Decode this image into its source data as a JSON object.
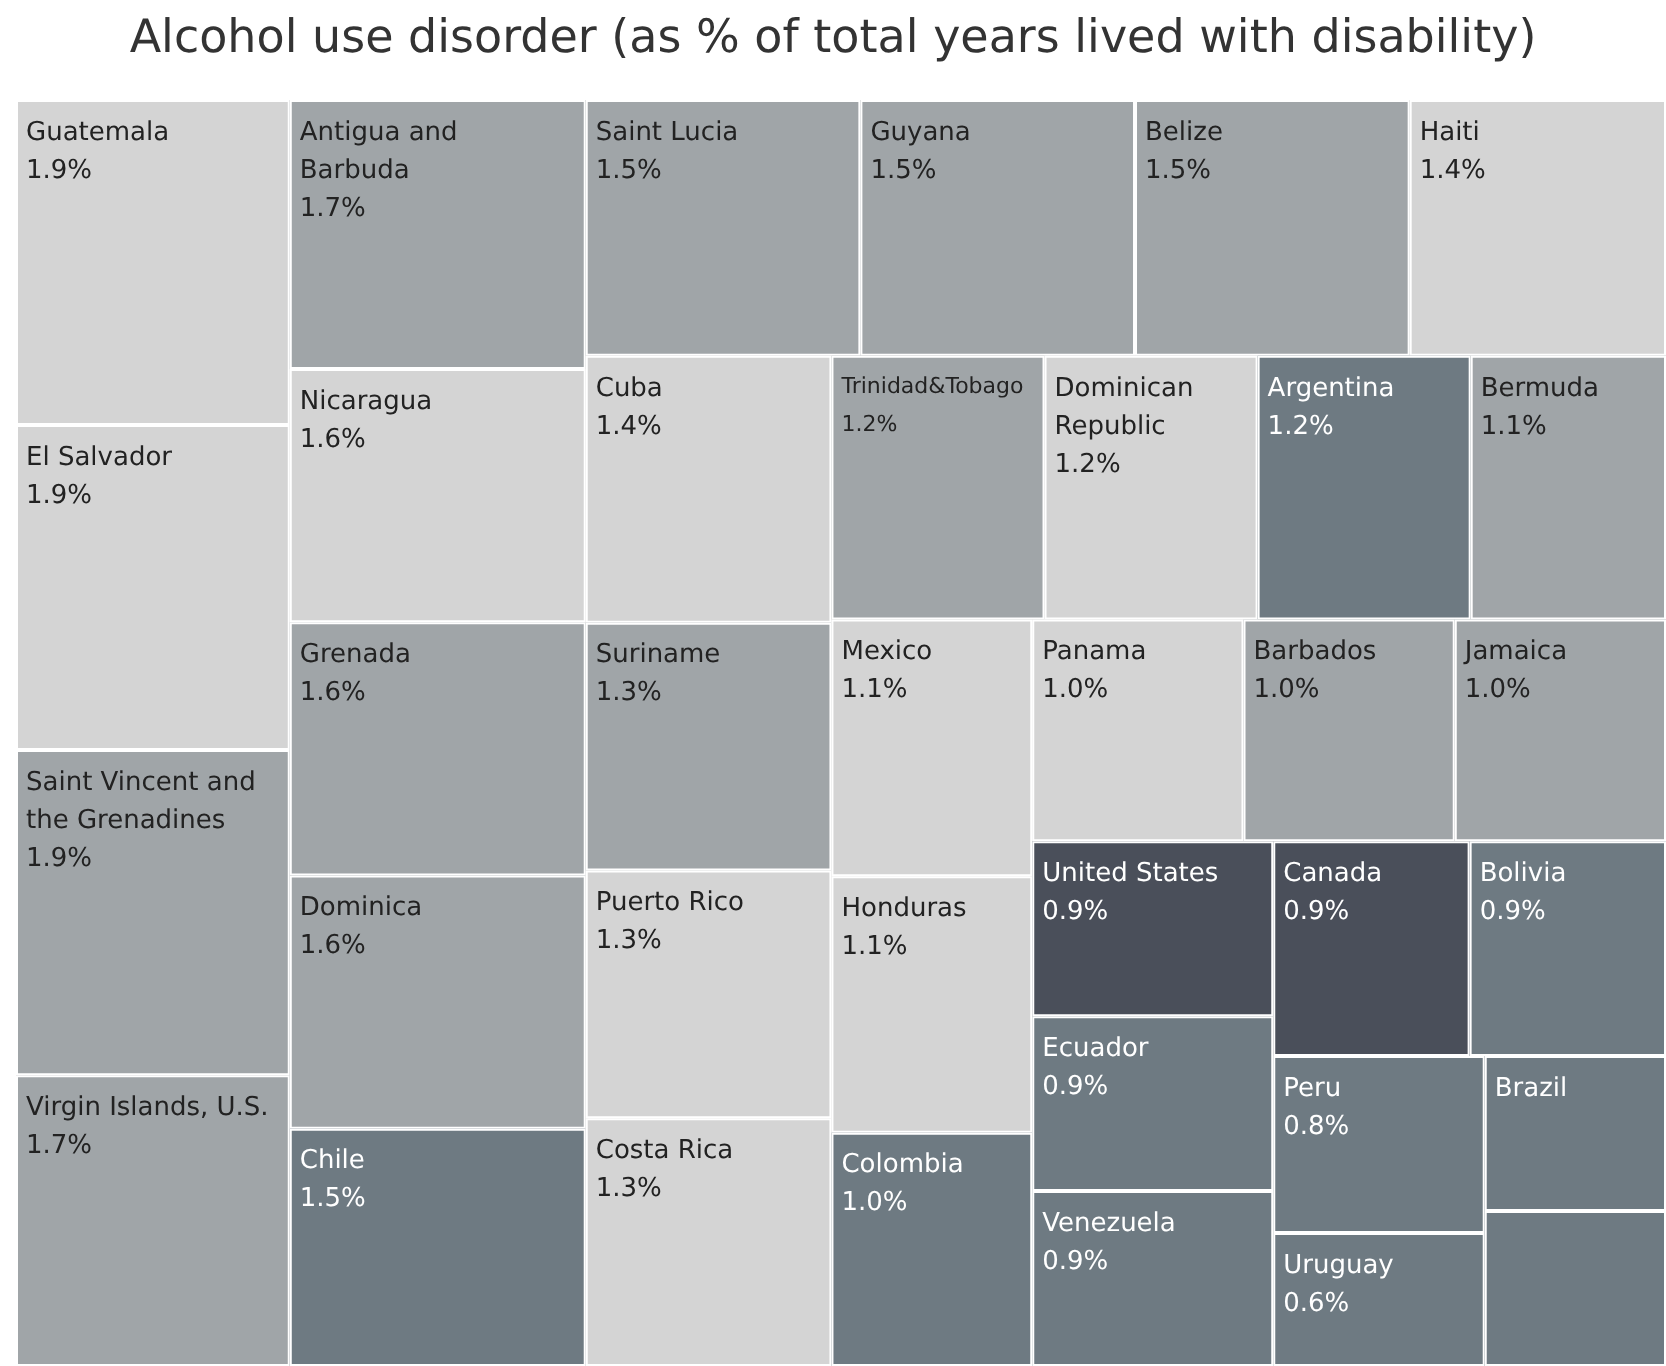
{
  "chart_data": {
    "type": "other",
    "title": "Alcohol use disorder (as % of total years lived with disability)",
    "categories": [
      "Guatemala",
      "El Salvador",
      "Saint Vincent and the Grenadines",
      "Virgin Islands, U.S.",
      "Antigua and Barbuda",
      "Nicaragua",
      "Grenada",
      "Dominica",
      "Chile",
      "Saint Lucia",
      "Guyana",
      "Belize",
      "Haiti",
      "Cuba",
      "Suriname",
      "Puerto Rico",
      "Costa Rica",
      "Trinidad&Tobago",
      "Dominican Republic",
      "Argentina",
      "Bermuda",
      "Mexico",
      "Honduras",
      "Colombia",
      "Panama",
      "Barbados",
      "Jamaica",
      "United States",
      "Ecuador",
      "Venezuela",
      "Canada",
      "Bolivia",
      "Peru",
      "Uruguay",
      "Brazil",
      null
    ],
    "values": [
      1.9,
      1.9,
      1.9,
      1.7,
      1.7,
      1.6,
      1.6,
      1.6,
      1.5,
      1.5,
      1.5,
      1.5,
      1.4,
      1.4,
      1.3,
      1.3,
      1.3,
      1.2,
      1.2,
      1.2,
      1.1,
      1.1,
      1.1,
      1.0,
      1.0,
      1.0,
      1.0,
      0.9,
      0.9,
      0.9,
      0.9,
      0.9,
      0.8,
      0.6,
      null,
      null
    ],
    "value_labels": [
      "1.9%",
      "1.9%",
      "1.9%",
      "1.7%",
      "1.7%",
      "1.6%",
      "1.6%",
      "1.6%",
      "1.5%",
      "1.5%",
      "1.5%",
      "1.5%",
      "1.4%",
      "1.4%",
      "1.3%",
      "1.3%",
      "1.3%",
      "1.2%",
      "1.2%",
      "1.2%",
      "1.1%",
      "1.1%",
      "1.1%",
      "1.0%",
      "1.0%",
      "1.0%",
      "1.0%",
      "0.9%",
      "0.9%",
      "0.9%",
      "0.9%",
      "0.9%",
      "0.8%",
      "0.6%",
      null,
      null
    ],
    "colors": [
      "#d4d4d4",
      "#d4d4d4",
      "#a0a5a8",
      "#a0a5a8",
      "#a0a5a8",
      "#d4d4d4",
      "#a0a5a8",
      "#a0a5a8",
      "#6e7a82",
      "#a0a5a8",
      "#a0a5a8",
      "#a0a5a8",
      "#d4d4d4",
      "#d4d4d4",
      "#a0a5a8",
      "#d4d4d4",
      "#d4d4d4",
      "#a0a5a8",
      "#d4d4d4",
      "#6e7a82",
      "#a0a5a8",
      "#d4d4d4",
      "#d4d4d4",
      "#6e7a82",
      "#d4d4d4",
      "#a0a5a8",
      "#a0a5a8",
      "#4a4f5a",
      "#6e7a82",
      "#6e7a82",
      "#4a4f5a",
      "#6e7a82",
      "#6e7a82",
      "#6e7a82",
      "#6e7a82",
      "#6e7a82"
    ]
  }
}
